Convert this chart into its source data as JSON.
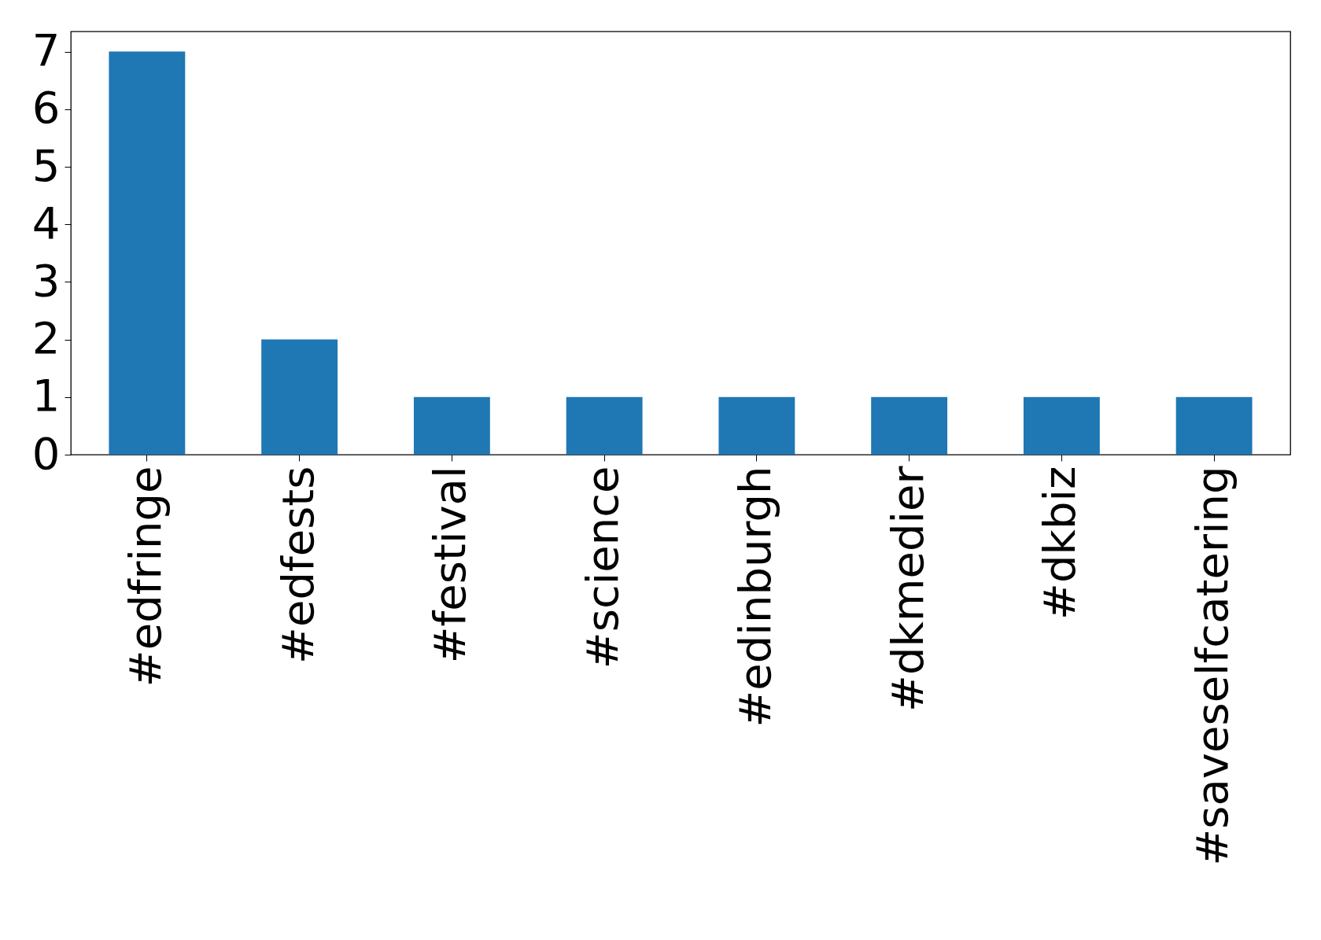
{
  "chart_data": {
    "type": "bar",
    "categories": [
      "#edfringe",
      "#edfests",
      "#festival",
      "#science",
      "#edinburgh",
      "#dkmedier",
      "#dkbiz",
      "#saveselfcatering"
    ],
    "values": [
      7,
      2,
      1,
      1,
      1,
      1,
      1,
      1
    ],
    "color": "#1f77b4",
    "ylim": [
      0,
      7.35
    ],
    "yticks": [
      0,
      1,
      2,
      3,
      4,
      5,
      6,
      7
    ],
    "grid": false
  }
}
